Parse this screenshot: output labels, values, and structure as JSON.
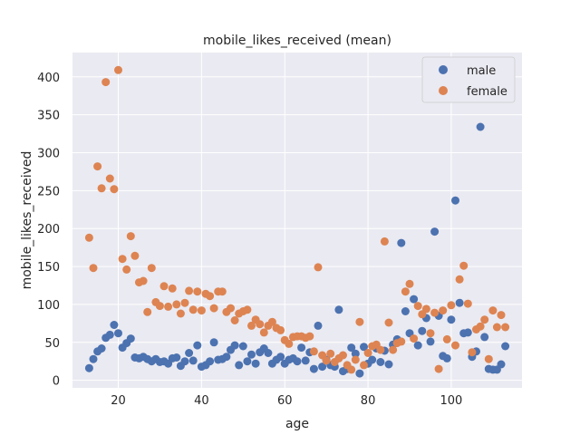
{
  "chart_data": {
    "type": "scatter",
    "title": "mobile_likes_received (mean)",
    "xlabel": "age",
    "ylabel": "mobile_likes_received",
    "xlim": [
      9,
      117
    ],
    "ylim": [
      -10,
      432
    ],
    "xticks": [
      20,
      40,
      60,
      80,
      100
    ],
    "yticks": [
      0,
      50,
      100,
      150,
      200,
      250,
      300,
      350,
      400
    ],
    "grid": true,
    "legend_position": "top-right",
    "series": [
      {
        "name": "male",
        "color": "#4c72b0",
        "points": [
          [
            13,
            16
          ],
          [
            14,
            28
          ],
          [
            15,
            38
          ],
          [
            16,
            42
          ],
          [
            17,
            56
          ],
          [
            18,
            60
          ],
          [
            19,
            73
          ],
          [
            20,
            62
          ],
          [
            21,
            43
          ],
          [
            22,
            49
          ],
          [
            23,
            55
          ],
          [
            24,
            30
          ],
          [
            25,
            29
          ],
          [
            26,
            31
          ],
          [
            27,
            28
          ],
          [
            28,
            25
          ],
          [
            29,
            28
          ],
          [
            30,
            24
          ],
          [
            31,
            25
          ],
          [
            32,
            22
          ],
          [
            33,
            29
          ],
          [
            34,
            30
          ],
          [
            35,
            19
          ],
          [
            36,
            25
          ],
          [
            37,
            36
          ],
          [
            38,
            26
          ],
          [
            39,
            46
          ],
          [
            40,
            18
          ],
          [
            41,
            20
          ],
          [
            42,
            25
          ],
          [
            43,
            50
          ],
          [
            44,
            27
          ],
          [
            45,
            28
          ],
          [
            46,
            31
          ],
          [
            47,
            40
          ],
          [
            48,
            46
          ],
          [
            49,
            20
          ],
          [
            50,
            45
          ],
          [
            51,
            25
          ],
          [
            52,
            34
          ],
          [
            53,
            22
          ],
          [
            54,
            37
          ],
          [
            55,
            42
          ],
          [
            56,
            36
          ],
          [
            57,
            22
          ],
          [
            58,
            27
          ],
          [
            59,
            31
          ],
          [
            60,
            22
          ],
          [
            61,
            27
          ],
          [
            62,
            29
          ],
          [
            63,
            25
          ],
          [
            64,
            43
          ],
          [
            65,
            26
          ],
          [
            66,
            37
          ],
          [
            67,
            15
          ],
          [
            68,
            72
          ],
          [
            69,
            18
          ],
          [
            70,
            27
          ],
          [
            71,
            20
          ],
          [
            72,
            18
          ],
          [
            73,
            93
          ],
          [
            74,
            12
          ],
          [
            75,
            15
          ],
          [
            76,
            43
          ],
          [
            77,
            35
          ],
          [
            78,
            9
          ],
          [
            79,
            44
          ],
          [
            80,
            22
          ],
          [
            81,
            27
          ],
          [
            82,
            42
          ],
          [
            83,
            24
          ],
          [
            84,
            39
          ],
          [
            85,
            21
          ],
          [
            86,
            47
          ],
          [
            87,
            54
          ],
          [
            88,
            181
          ],
          [
            89,
            91
          ],
          [
            90,
            62
          ],
          [
            91,
            107
          ],
          [
            92,
            46
          ],
          [
            93,
            65
          ],
          [
            94,
            82
          ],
          [
            95,
            51
          ],
          [
            96,
            196
          ],
          [
            97,
            85
          ],
          [
            98,
            32
          ],
          [
            99,
            29
          ],
          [
            100,
            80
          ],
          [
            101,
            237
          ],
          [
            102,
            102
          ],
          [
            103,
            62
          ],
          [
            104,
            63
          ],
          [
            105,
            31
          ],
          [
            106,
            38
          ],
          [
            107,
            334
          ],
          [
            108,
            57
          ],
          [
            109,
            15
          ],
          [
            110,
            14
          ],
          [
            111,
            14
          ],
          [
            112,
            21
          ],
          [
            113,
            45
          ]
        ]
      },
      {
        "name": "female",
        "color": "#dd8452",
        "points": [
          [
            13,
            188
          ],
          [
            14,
            148
          ],
          [
            15,
            282
          ],
          [
            16,
            253
          ],
          [
            17,
            393
          ],
          [
            18,
            266
          ],
          [
            19,
            252
          ],
          [
            20,
            409
          ],
          [
            21,
            160
          ],
          [
            22,
            146
          ],
          [
            23,
            190
          ],
          [
            24,
            164
          ],
          [
            25,
            129
          ],
          [
            26,
            131
          ],
          [
            27,
            90
          ],
          [
            28,
            148
          ],
          [
            29,
            103
          ],
          [
            30,
            98
          ],
          [
            31,
            124
          ],
          [
            32,
            97
          ],
          [
            33,
            121
          ],
          [
            34,
            100
          ],
          [
            35,
            88
          ],
          [
            36,
            102
          ],
          [
            37,
            118
          ],
          [
            38,
            93
          ],
          [
            39,
            117
          ],
          [
            40,
            92
          ],
          [
            41,
            114
          ],
          [
            42,
            111
          ],
          [
            43,
            95
          ],
          [
            44,
            117
          ],
          [
            45,
            117
          ],
          [
            46,
            90
          ],
          [
            47,
            95
          ],
          [
            48,
            79
          ],
          [
            49,
            88
          ],
          [
            50,
            91
          ],
          [
            51,
            93
          ],
          [
            52,
            72
          ],
          [
            53,
            80
          ],
          [
            54,
            74
          ],
          [
            55,
            63
          ],
          [
            56,
            72
          ],
          [
            57,
            77
          ],
          [
            58,
            69
          ],
          [
            59,
            66
          ],
          [
            60,
            53
          ],
          [
            61,
            48
          ],
          [
            62,
            57
          ],
          [
            63,
            58
          ],
          [
            64,
            58
          ],
          [
            65,
            56
          ],
          [
            66,
            58
          ],
          [
            67,
            38
          ],
          [
            68,
            149
          ],
          [
            69,
            33
          ],
          [
            70,
            26
          ],
          [
            71,
            35
          ],
          [
            72,
            24
          ],
          [
            73,
            29
          ],
          [
            74,
            33
          ],
          [
            75,
            20
          ],
          [
            76,
            14
          ],
          [
            77,
            27
          ],
          [
            78,
            77
          ],
          [
            79,
            20
          ],
          [
            80,
            36
          ],
          [
            81,
            45
          ],
          [
            82,
            47
          ],
          [
            83,
            40
          ],
          [
            84,
            183
          ],
          [
            85,
            76
          ],
          [
            86,
            40
          ],
          [
            87,
            49
          ],
          [
            88,
            51
          ],
          [
            89,
            117
          ],
          [
            90,
            127
          ],
          [
            91,
            55
          ],
          [
            92,
            98
          ],
          [
            93,
            87
          ],
          [
            94,
            94
          ],
          [
            95,
            62
          ],
          [
            96,
            89
          ],
          [
            97,
            15
          ],
          [
            98,
            92
          ],
          [
            99,
            54
          ],
          [
            100,
            99
          ],
          [
            101,
            46
          ],
          [
            102,
            133
          ],
          [
            103,
            151
          ],
          [
            104,
            101
          ],
          [
            105,
            37
          ],
          [
            106,
            67
          ],
          [
            107,
            71
          ],
          [
            108,
            80
          ],
          [
            109,
            28
          ],
          [
            110,
            92
          ],
          [
            111,
            70
          ],
          [
            112,
            86
          ],
          [
            113,
            70
          ]
        ]
      }
    ]
  }
}
